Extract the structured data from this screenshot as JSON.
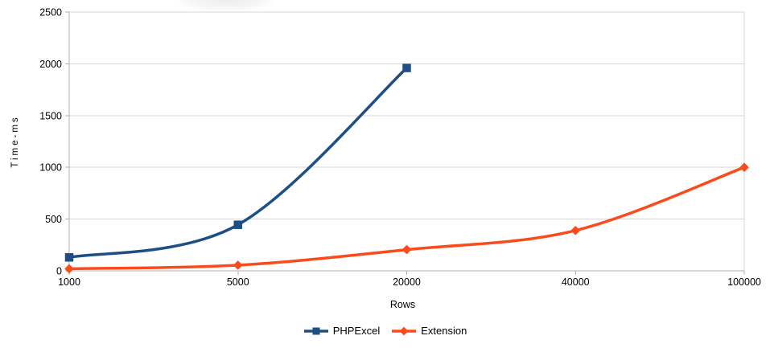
{
  "chart_data": {
    "type": "line",
    "title": "",
    "categories": [
      "1000",
      "5000",
      "20000",
      "40000",
      "100000"
    ],
    "series": [
      {
        "name": "PHPExcel",
        "color": "#1d4f85",
        "marker": "square",
        "values": [
          130,
          445,
          1960,
          null,
          null
        ]
      },
      {
        "name": "Extension",
        "color": "#fb4a1c",
        "marker": "diamond",
        "values": [
          20,
          55,
          205,
          390,
          1000
        ]
      }
    ],
    "xlabel": "Rows",
    "ylabel": "Time-ms",
    "ylim": [
      0,
      2500
    ],
    "ytick_step": 500,
    "ytick_labels": [
      "0",
      "500",
      "1000",
      "1500",
      "2000",
      "2500"
    ],
    "grid": "horizontal",
    "legend_position": "bottom",
    "smooth_lines": true,
    "colors": {
      "gridline": "#d6d6d6",
      "axis": "#b0b0b0",
      "tick_text": "#000000"
    }
  }
}
